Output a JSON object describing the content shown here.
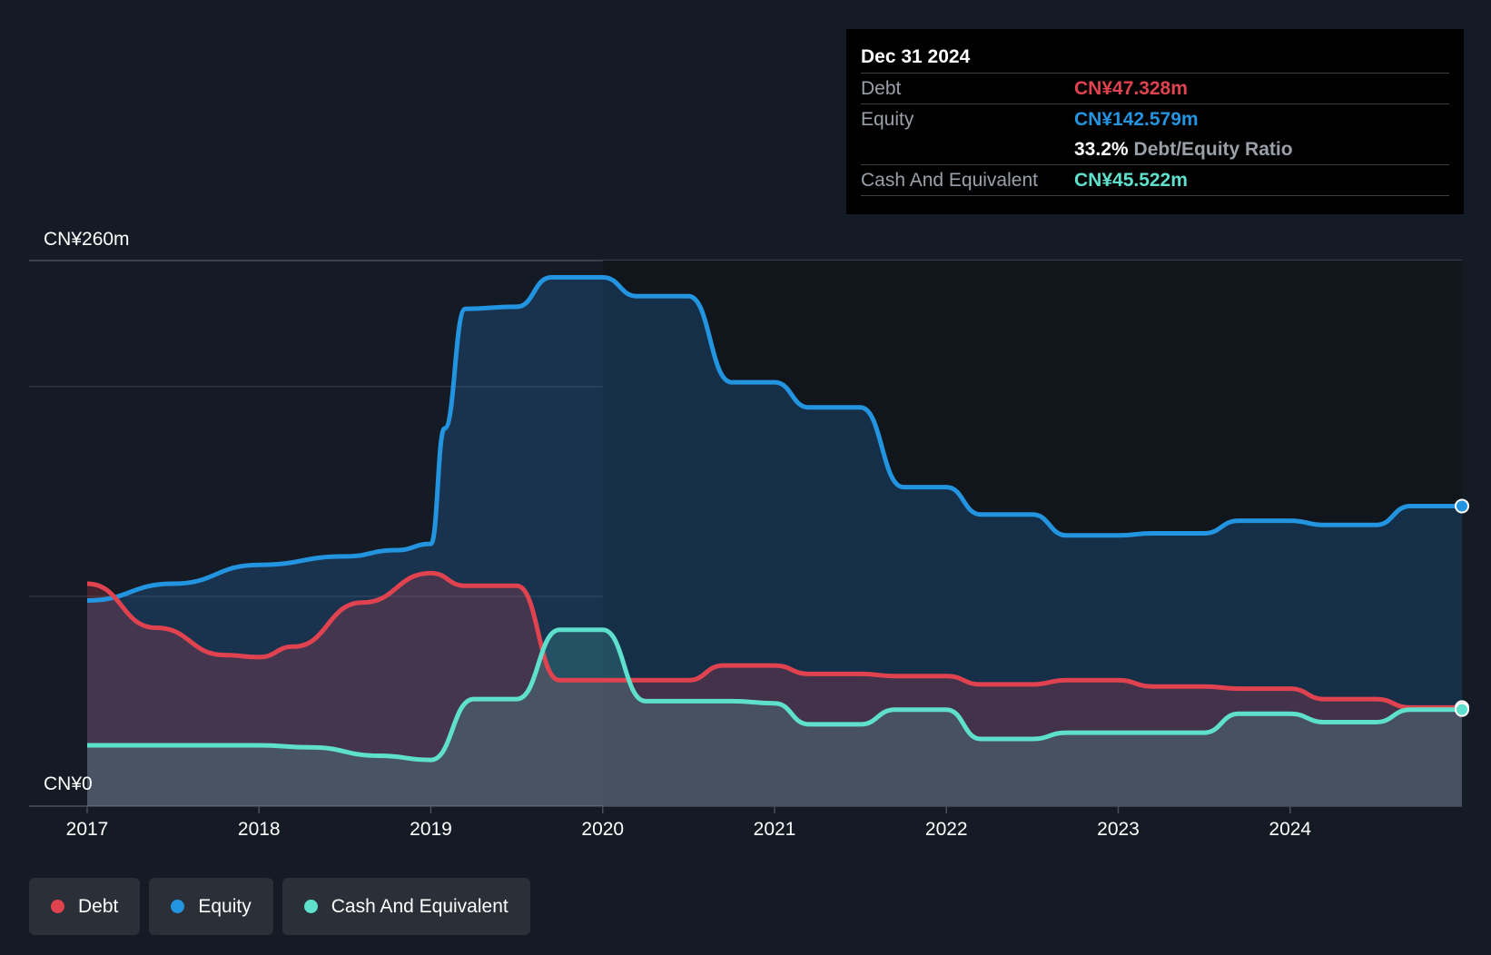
{
  "tooltip": {
    "date": "Dec 31 2024",
    "debt_label": "Debt",
    "debt_value": "CN¥47.328m",
    "equity_label": "Equity",
    "equity_value": "CN¥142.579m",
    "ratio_value": "33.2%",
    "ratio_label": "Debt/Equity Ratio",
    "cash_label": "Cash And Equivalent",
    "cash_value": "CN¥45.522m"
  },
  "legend": [
    {
      "label": "Debt",
      "color": "#e0434f"
    },
    {
      "label": "Equity",
      "color": "#2394e0"
    },
    {
      "label": "Cash And Equivalent",
      "color": "#5fe0cc"
    }
  ],
  "chart_data": {
    "type": "area",
    "ylabel_top": "CN¥260m",
    "ylabel_bottom": "CN¥0",
    "ylim": [
      0,
      260
    ],
    "xlim": [
      2017.0,
      2025.0
    ],
    "grid": true,
    "x_ticks": [
      "2017",
      "2018",
      "2019",
      "2020",
      "2021",
      "2022",
      "2023",
      "2024"
    ],
    "series": [
      {
        "name": "Equity",
        "color": "#2394e0",
        "points": [
          [
            2017.0,
            98
          ],
          [
            2017.5,
            106
          ],
          [
            2018.0,
            115
          ],
          [
            2018.5,
            119
          ],
          [
            2018.8,
            122
          ],
          [
            2019.0,
            125
          ],
          [
            2019.08,
            180
          ],
          [
            2019.2,
            237
          ],
          [
            2019.5,
            238
          ],
          [
            2019.7,
            252
          ],
          [
            2020.0,
            252
          ],
          [
            2020.2,
            243
          ],
          [
            2020.5,
            243
          ],
          [
            2020.75,
            202
          ],
          [
            2021.0,
            202
          ],
          [
            2021.2,
            190
          ],
          [
            2021.5,
            190
          ],
          [
            2021.75,
            152
          ],
          [
            2022.0,
            152
          ],
          [
            2022.2,
            139
          ],
          [
            2022.5,
            139
          ],
          [
            2022.7,
            129
          ],
          [
            2023.0,
            129
          ],
          [
            2023.2,
            130
          ],
          [
            2023.5,
            130
          ],
          [
            2023.7,
            136
          ],
          [
            2024.0,
            136
          ],
          [
            2024.2,
            134
          ],
          [
            2024.5,
            134
          ],
          [
            2024.7,
            143
          ],
          [
            2025.0,
            143
          ]
        ]
      },
      {
        "name": "Debt",
        "color": "#e0434f",
        "points": [
          [
            2017.0,
            106
          ],
          [
            2017.4,
            85
          ],
          [
            2017.8,
            72
          ],
          [
            2018.0,
            71
          ],
          [
            2018.2,
            76
          ],
          [
            2018.6,
            97
          ],
          [
            2019.0,
            111
          ],
          [
            2019.2,
            105
          ],
          [
            2019.5,
            105
          ],
          [
            2019.75,
            60
          ],
          [
            2020.0,
            60
          ],
          [
            2020.5,
            60
          ],
          [
            2020.7,
            67
          ],
          [
            2021.0,
            67
          ],
          [
            2021.2,
            63
          ],
          [
            2021.5,
            63
          ],
          [
            2021.7,
            62
          ],
          [
            2022.0,
            62
          ],
          [
            2022.2,
            58
          ],
          [
            2022.5,
            58
          ],
          [
            2022.7,
            60
          ],
          [
            2023.0,
            60
          ],
          [
            2023.2,
            57
          ],
          [
            2023.5,
            57
          ],
          [
            2023.7,
            56
          ],
          [
            2024.0,
            56
          ],
          [
            2024.2,
            51
          ],
          [
            2024.5,
            51
          ],
          [
            2024.7,
            47
          ],
          [
            2025.0,
            47
          ]
        ]
      },
      {
        "name": "Cash And Equivalent",
        "color": "#5fe0cc",
        "points": [
          [
            2017.0,
            29
          ],
          [
            2017.5,
            29
          ],
          [
            2018.0,
            29
          ],
          [
            2018.3,
            28
          ],
          [
            2018.7,
            24
          ],
          [
            2019.0,
            22
          ],
          [
            2019.25,
            51
          ],
          [
            2019.5,
            51
          ],
          [
            2019.75,
            84
          ],
          [
            2020.0,
            84
          ],
          [
            2020.25,
            50
          ],
          [
            2020.5,
            50
          ],
          [
            2020.75,
            50
          ],
          [
            2021.0,
            49
          ],
          [
            2021.2,
            39
          ],
          [
            2021.5,
            39
          ],
          [
            2021.7,
            46
          ],
          [
            2022.0,
            46
          ],
          [
            2022.2,
            32
          ],
          [
            2022.5,
            32
          ],
          [
            2022.7,
            35
          ],
          [
            2023.0,
            35
          ],
          [
            2023.2,
            35
          ],
          [
            2023.5,
            35
          ],
          [
            2023.7,
            44
          ],
          [
            2024.0,
            44
          ],
          [
            2024.2,
            40
          ],
          [
            2024.5,
            40
          ],
          [
            2024.7,
            46
          ],
          [
            2025.0,
            46
          ]
        ]
      }
    ]
  }
}
